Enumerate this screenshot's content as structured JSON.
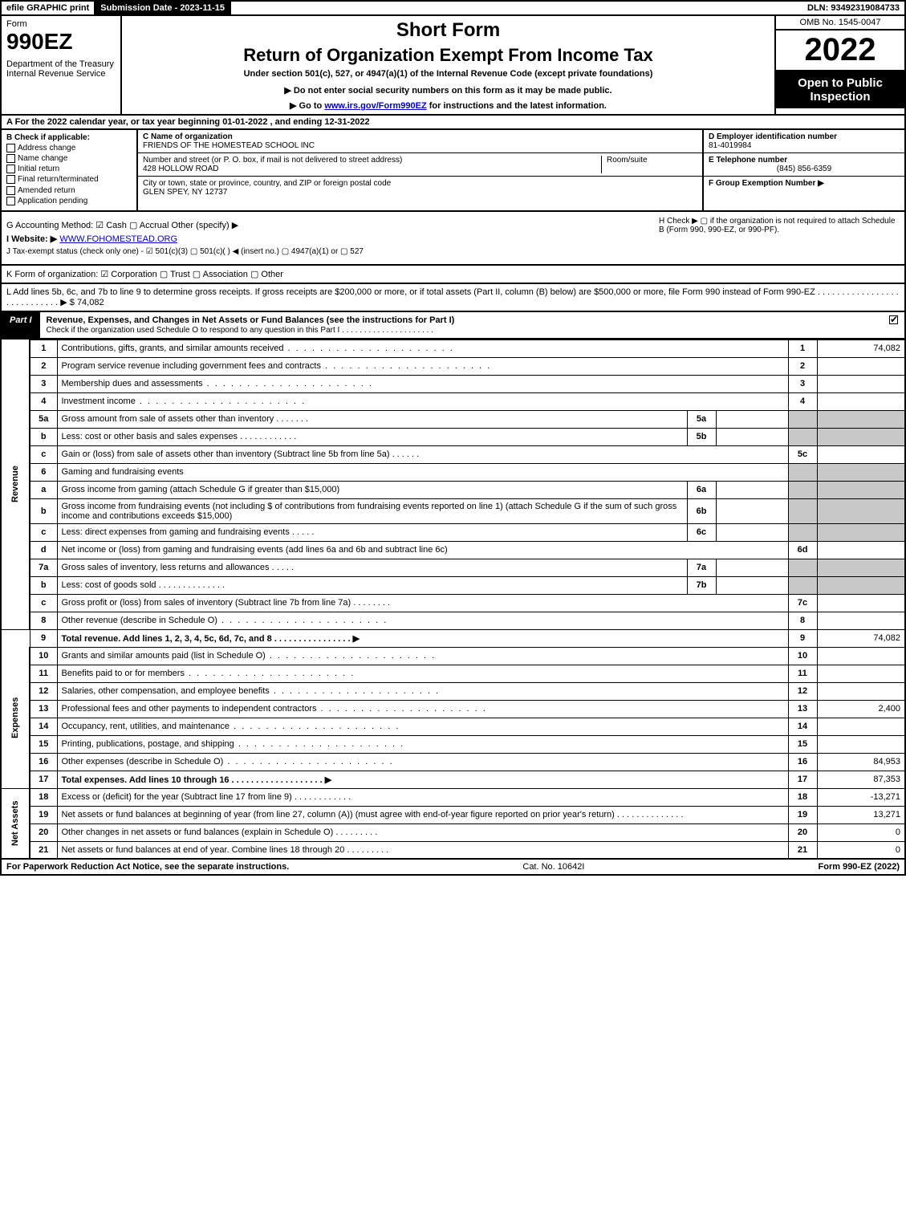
{
  "topbar": {
    "efile": "efile GRAPHIC print",
    "submission": "Submission Date - 2023-11-15",
    "dln": "DLN: 93492319084733"
  },
  "header": {
    "form_word": "Form",
    "form_num": "990EZ",
    "dept": "Department of the Treasury\nInternal Revenue Service",
    "short": "Short Form",
    "title": "Return of Organization Exempt From Income Tax",
    "subtitle": "Under section 501(c), 527, or 4947(a)(1) of the Internal Revenue Code (except private foundations)",
    "donot": "▶ Do not enter social security numbers on this form as it may be made public.",
    "goto_pre": "▶ Go to ",
    "goto_link": "www.irs.gov/Form990EZ",
    "goto_post": " for instructions and the latest information.",
    "omb": "OMB No. 1545-0047",
    "year": "2022",
    "open": "Open to Public Inspection"
  },
  "rowA": "A  For the 2022 calendar year, or tax year beginning 01-01-2022 , and ending 12-31-2022",
  "sectionB": {
    "label": "B  Check if applicable:",
    "opts": [
      "Address change",
      "Name change",
      "Initial return",
      "Final return/terminated",
      "Amended return",
      "Application pending"
    ]
  },
  "sectionC": {
    "name_lbl": "C Name of organization",
    "name": "FRIENDS OF THE HOMESTEAD SCHOOL INC",
    "street_lbl": "Number and street (or P. O. box, if mail is not delivered to street address)",
    "street": "428 HOLLOW ROAD",
    "room_lbl": "Room/suite",
    "city_lbl": "City or town, state or province, country, and ZIP or foreign postal code",
    "city": "GLEN SPEY, NY  12737"
  },
  "sectionDEF": {
    "d_lbl": "D Employer identification number",
    "d_val": "81-4019984",
    "e_lbl": "E Telephone number",
    "e_val": "(845) 856-6359",
    "f_lbl": "F Group Exemption Number  ▶"
  },
  "rowG": "G Accounting Method:   ☑ Cash   ▢ Accrual   Other (specify) ▶",
  "rowH": "H  Check ▶  ▢  if the organization is not required to attach Schedule B (Form 990, 990-EZ, or 990-PF).",
  "rowI_pre": "I Website: ▶",
  "rowI_link": "WWW.FOHOMESTEAD.ORG",
  "rowJ": "J Tax-exempt status (check only one) -  ☑ 501(c)(3)  ▢ 501(c)(  ) ◀ (insert no.)  ▢ 4947(a)(1) or  ▢ 527",
  "rowK": "K Form of organization:   ☑ Corporation   ▢ Trust   ▢ Association   ▢ Other",
  "rowL": {
    "text": "L Add lines 5b, 6c, and 7b to line 9 to determine gross receipts. If gross receipts are $200,000 or more, or if total assets (Part II, column (B) below) are $500,000 or more, file Form 990 instead of Form 990-EZ  .  .  .  .  .  .  .  .  .  .  .  .  .  .  .  .  .  .  .  .  .  .  .  .  .  .  .  .  ▶ $",
    "val": "74,082"
  },
  "partI": {
    "tag": "Part I",
    "title": "Revenue, Expenses, and Changes in Net Assets or Fund Balances (see the instructions for Part I)",
    "sub": "Check if the organization used Schedule O to respond to any question in this Part I .  .  .  .  .  .  .  .  .  .  .  .  .  .  .  .  .  .  .  .  ."
  },
  "sidelabels": {
    "rev": "Revenue",
    "exp": "Expenses",
    "net": "Net Assets"
  },
  "lines": {
    "l1": {
      "n": "1",
      "d": "Contributions, gifts, grants, and similar amounts received",
      "c": "1",
      "v": "74,082"
    },
    "l2": {
      "n": "2",
      "d": "Program service revenue including government fees and contracts",
      "c": "2",
      "v": ""
    },
    "l3": {
      "n": "3",
      "d": "Membership dues and assessments",
      "c": "3",
      "v": ""
    },
    "l4": {
      "n": "4",
      "d": "Investment income",
      "c": "4",
      "v": ""
    },
    "l5a": {
      "n": "5a",
      "d": "Gross amount from sale of assets other than inventory",
      "sn": "5a",
      "sv": ""
    },
    "l5b": {
      "n": "b",
      "d": "Less: cost or other basis and sales expenses",
      "sn": "5b",
      "sv": ""
    },
    "l5c": {
      "n": "c",
      "d": "Gain or (loss) from sale of assets other than inventory (Subtract line 5b from line 5a)",
      "c": "5c",
      "v": ""
    },
    "l6": {
      "n": "6",
      "d": "Gaming and fundraising events"
    },
    "l6a": {
      "n": "a",
      "d": "Gross income from gaming (attach Schedule G if greater than $15,000)",
      "sn": "6a",
      "sv": ""
    },
    "l6b": {
      "n": "b",
      "d": "Gross income from fundraising events (not including $                of contributions from fundraising events reported on line 1) (attach Schedule G if the sum of such gross income and contributions exceeds $15,000)",
      "sn": "6b",
      "sv": ""
    },
    "l6c": {
      "n": "c",
      "d": "Less: direct expenses from gaming and fundraising events",
      "sn": "6c",
      "sv": ""
    },
    "l6d": {
      "n": "d",
      "d": "Net income or (loss) from gaming and fundraising events (add lines 6a and 6b and subtract line 6c)",
      "c": "6d",
      "v": ""
    },
    "l7a": {
      "n": "7a",
      "d": "Gross sales of inventory, less returns and allowances",
      "sn": "7a",
      "sv": ""
    },
    "l7b": {
      "n": "b",
      "d": "Less: cost of goods sold",
      "sn": "7b",
      "sv": ""
    },
    "l7c": {
      "n": "c",
      "d": "Gross profit or (loss) from sales of inventory (Subtract line 7b from line 7a)",
      "c": "7c",
      "v": ""
    },
    "l8": {
      "n": "8",
      "d": "Other revenue (describe in Schedule O)",
      "c": "8",
      "v": ""
    },
    "l9": {
      "n": "9",
      "d": "Total revenue. Add lines 1, 2, 3, 4, 5c, 6d, 7c, and 8   .  .  .  .  .  .  .  .  .  .  .  .  .  .  .  . ▶",
      "c": "9",
      "v": "74,082"
    },
    "l10": {
      "n": "10",
      "d": "Grants and similar amounts paid (list in Schedule O)",
      "c": "10",
      "v": ""
    },
    "l11": {
      "n": "11",
      "d": "Benefits paid to or for members",
      "c": "11",
      "v": ""
    },
    "l12": {
      "n": "12",
      "d": "Salaries, other compensation, and employee benefits",
      "c": "12",
      "v": ""
    },
    "l13": {
      "n": "13",
      "d": "Professional fees and other payments to independent contractors",
      "c": "13",
      "v": "2,400"
    },
    "l14": {
      "n": "14",
      "d": "Occupancy, rent, utilities, and maintenance",
      "c": "14",
      "v": ""
    },
    "l15": {
      "n": "15",
      "d": "Printing, publications, postage, and shipping",
      "c": "15",
      "v": ""
    },
    "l16": {
      "n": "16",
      "d": "Other expenses (describe in Schedule O)",
      "c": "16",
      "v": "84,953"
    },
    "l17": {
      "n": "17",
      "d": "Total expenses. Add lines 10 through 16    .  .  .  .  .  .  .  .  .  .  .  .  .  .  .  .  .  .  . ▶",
      "c": "17",
      "v": "87,353"
    },
    "l18": {
      "n": "18",
      "d": "Excess or (deficit) for the year (Subtract line 17 from line 9)",
      "c": "18",
      "v": "-13,271"
    },
    "l19": {
      "n": "19",
      "d": "Net assets or fund balances at beginning of year (from line 27, column (A)) (must agree with end-of-year figure reported on prior year's return)",
      "c": "19",
      "v": "13,271"
    },
    "l20": {
      "n": "20",
      "d": "Other changes in net assets or fund balances (explain in Schedule O)",
      "c": "20",
      "v": "0"
    },
    "l21": {
      "n": "21",
      "d": "Net assets or fund balances at end of year. Combine lines 18 through 20",
      "c": "21",
      "v": "0"
    }
  },
  "footer": {
    "left": "For Paperwork Reduction Act Notice, see the separate instructions.",
    "mid": "Cat. No. 10642I",
    "right": "Form 990-EZ (2022)"
  }
}
